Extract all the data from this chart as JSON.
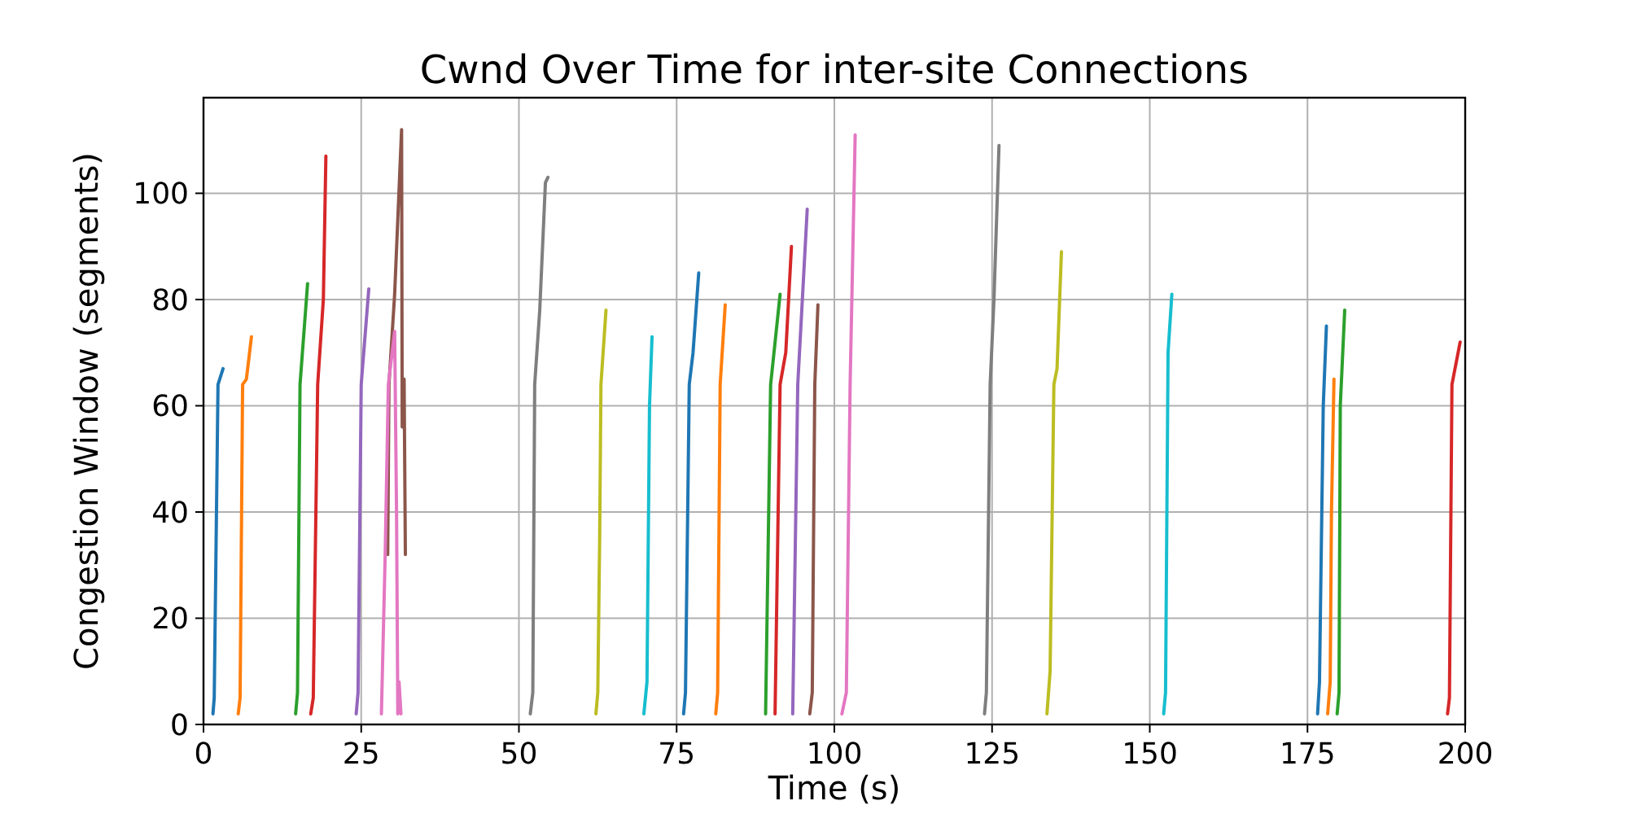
{
  "chart_data": {
    "type": "line",
    "title": "Cwnd Over Time for inter-site Connections",
    "xlabel": "Time (s)",
    "ylabel": "Congestion Window (segments)",
    "xlim": [
      0,
      200
    ],
    "xticks": [
      0,
      25,
      50,
      75,
      100,
      125,
      150,
      175,
      200
    ],
    "ylim": [
      0,
      118
    ],
    "yticks": [
      0,
      20,
      40,
      60,
      80,
      100
    ],
    "grid": true,
    "series": [
      {
        "color": "#1f77b4",
        "x": [
          1.5,
          1.7,
          2.3,
          3.1
        ],
        "values": [
          2,
          5,
          64,
          67
        ]
      },
      {
        "color": "#ff7f0e",
        "x": [
          5.5,
          5.8,
          6.2,
          6.8,
          7.6
        ],
        "values": [
          2,
          5,
          64,
          65,
          73
        ]
      },
      {
        "color": "#2ca02c",
        "x": [
          14.6,
          14.9,
          15.3,
          16.5
        ],
        "values": [
          2,
          6,
          64,
          83
        ]
      },
      {
        "color": "#d62728",
        "x": [
          17.0,
          17.4,
          18.1,
          19.0,
          19.4
        ],
        "values": [
          2,
          5,
          64,
          80,
          107
        ]
      },
      {
        "color": "#9467bd",
        "x": [
          24.2,
          24.5,
          25.0,
          26.2
        ],
        "values": [
          2,
          6,
          64,
          82
        ]
      },
      {
        "color": "#8c564b",
        "x": [
          29.2,
          29.4,
          30.3,
          31.4,
          31.5,
          31.8,
          32.0
        ],
        "values": [
          32,
          64,
          81,
          112,
          56,
          65,
          32
        ]
      },
      {
        "color": "#e377c2",
        "x": [
          28.2,
          28.8,
          29.3,
          30.3,
          30.6,
          30.8,
          31.0,
          31.3
        ],
        "values": [
          2,
          32,
          64,
          74,
          40,
          2,
          8,
          2
        ]
      },
      {
        "color": "#7f7f7f",
        "x": [
          51.8,
          52.2,
          52.5,
          53.3,
          54.2,
          54.6
        ],
        "values": [
          2,
          6,
          64,
          78,
          102,
          103
        ]
      },
      {
        "color": "#bcbd22",
        "x": [
          62.2,
          62.5,
          62.8,
          63.0,
          63.8
        ],
        "values": [
          2,
          6,
          35,
          64,
          78
        ]
      },
      {
        "color": "#17becf",
        "x": [
          69.8,
          70.3,
          70.7,
          71.1
        ],
        "values": [
          2,
          8,
          60,
          73
        ]
      },
      {
        "color": "#1f77b4",
        "x": [
          76.1,
          76.4,
          77.0,
          77.6,
          78.5
        ],
        "values": [
          2,
          6,
          64,
          70,
          85
        ]
      },
      {
        "color": "#ff7f0e",
        "x": [
          81.2,
          81.5,
          81.9,
          82.7
        ],
        "values": [
          2,
          6,
          64,
          79
        ]
      },
      {
        "color": "#2ca02c",
        "x": [
          89.1,
          89.9,
          91.4
        ],
        "values": [
          2,
          64,
          81
        ]
      },
      {
        "color": "#d62728",
        "x": [
          90.6,
          91.4,
          92.3,
          93.2
        ],
        "values": [
          2,
          64,
          70,
          90
        ]
      },
      {
        "color": "#9467bd",
        "x": [
          93.4,
          94.2,
          95.7
        ],
        "values": [
          2,
          64,
          97
        ]
      },
      {
        "color": "#8c564b",
        "x": [
          96.1,
          96.5,
          96.9,
          97.4
        ],
        "values": [
          2,
          6,
          64,
          79
        ]
      },
      {
        "color": "#e377c2",
        "x": [
          101.2,
          101.9,
          102.5,
          103.3
        ],
        "values": [
          2,
          6,
          64,
          111
        ]
      },
      {
        "color": "#7f7f7f",
        "x": [
          123.8,
          124.1,
          124.7,
          125.3,
          126.1
        ],
        "values": [
          2,
          6,
          64,
          80,
          109
        ]
      },
      {
        "color": "#bcbd22",
        "x": [
          133.7,
          134.2,
          134.8,
          135.3,
          136.0
        ],
        "values": [
          2,
          10,
          64,
          67,
          89
        ]
      },
      {
        "color": "#17becf",
        "x": [
          152.2,
          152.5,
          152.9,
          153.5
        ],
        "values": [
          2,
          6,
          70,
          81
        ]
      },
      {
        "color": "#1f77b4",
        "x": [
          176.6,
          176.9,
          177.5,
          178.0
        ],
        "values": [
          2,
          8,
          60,
          75
        ]
      },
      {
        "color": "#ff7f0e",
        "x": [
          178.2,
          178.6,
          178.8,
          179.2
        ],
        "values": [
          2,
          8,
          40,
          65
        ]
      },
      {
        "color": "#2ca02c",
        "x": [
          179.7,
          180.0,
          180.2,
          180.9
        ],
        "values": [
          2,
          6,
          60,
          78
        ]
      },
      {
        "color": "#d62728",
        "x": [
          197.2,
          197.5,
          197.9,
          199.2
        ],
        "values": [
          2,
          5,
          64,
          72
        ]
      }
    ]
  }
}
